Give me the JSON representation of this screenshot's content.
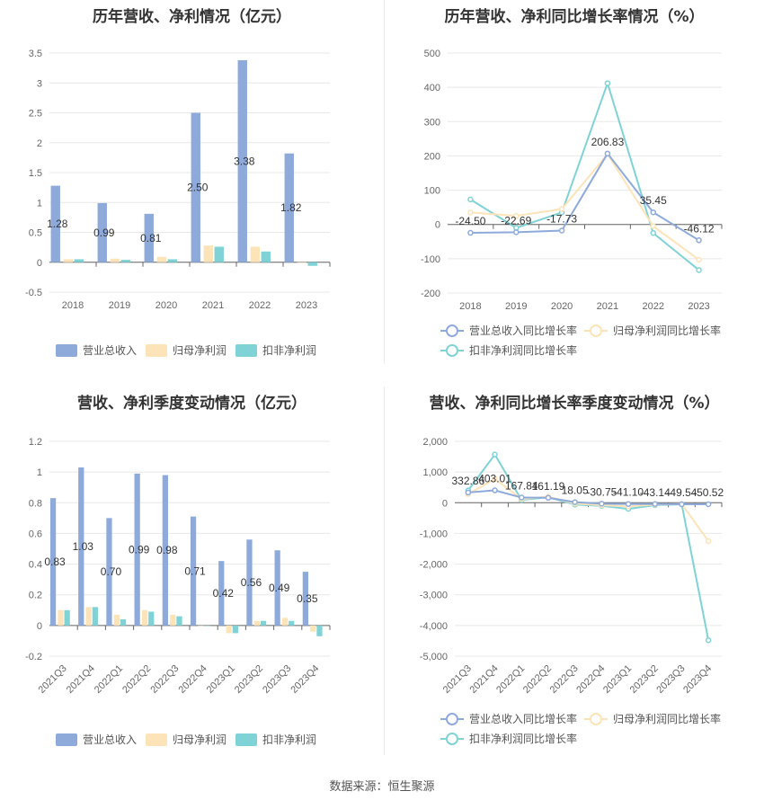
{
  "colors": {
    "revenue": "#8eaadb",
    "parent": "#fde3b8",
    "deducted": "#7fd3d6",
    "grid": "#e8e8e8",
    "axis": "#666666"
  },
  "source": "数据来源：恒生聚源",
  "chart_data": [
    {
      "type": "bar",
      "title": "历年营收、净利情况（亿元）",
      "categories": [
        "2018",
        "2019",
        "2020",
        "2021",
        "2022",
        "2023"
      ],
      "ylim": [
        -0.5,
        3.5
      ],
      "yticks": [
        -0.5,
        0,
        0.5,
        1,
        1.5,
        2,
        2.5,
        3,
        3.5
      ],
      "ytick_labels": [
        "-0.5",
        "0",
        "0.5",
        "1",
        "1.5",
        "2",
        "2.5",
        "3",
        "3.5"
      ],
      "series": [
        {
          "name": "营业总收入",
          "values": [
            1.28,
            0.99,
            0.81,
            2.5,
            3.38,
            1.82
          ],
          "labels": [
            "1.28",
            "0.99",
            "0.81",
            "2.50",
            "3.38",
            "1.82"
          ]
        },
        {
          "name": "归母净利润",
          "values": [
            0.05,
            0.06,
            0.09,
            0.28,
            0.26,
            -0.01
          ]
        },
        {
          "name": "扣非净利润",
          "values": [
            0.05,
            0.04,
            0.05,
            0.26,
            0.18,
            -0.06
          ]
        }
      ],
      "legend": "bottom"
    },
    {
      "type": "line",
      "title": "历年营收、净利同比增长率情况（%）",
      "categories": [
        "2018",
        "2019",
        "2020",
        "2021",
        "2022",
        "2023"
      ],
      "ylim": [
        -200,
        500
      ],
      "yticks": [
        -200,
        -100,
        0,
        100,
        200,
        300,
        400,
        500
      ],
      "ytick_labels": [
        "-200",
        "-100",
        "0",
        "100",
        "200",
        "300",
        "400",
        "500"
      ],
      "series": [
        {
          "name": "营业总收入同比增长率",
          "values": [
            -24.5,
            -22.69,
            -17.73,
            206.83,
            35.45,
            -46.12
          ],
          "labels": [
            "-24.50",
            "-22.69",
            "-17.73",
            "206.83",
            "35.45",
            "-46.12"
          ]
        },
        {
          "name": "归母净利润同比增长率",
          "values": [
            35,
            25,
            45,
            205,
            -5,
            -103
          ]
        },
        {
          "name": "扣非净利润同比增长率",
          "values": [
            73,
            -10,
            35,
            412,
            -25,
            -133
          ]
        }
      ],
      "legend": "bottom"
    },
    {
      "type": "bar",
      "title": "营收、净利季度变动情况（亿元）",
      "categories": [
        "2021Q3",
        "2021Q4",
        "2022Q1",
        "2022Q2",
        "2022Q3",
        "2022Q4",
        "2023Q1",
        "2023Q2",
        "2023Q3",
        "2023Q4"
      ],
      "ylim": [
        -0.2,
        1.2
      ],
      "yticks": [
        -0.2,
        0,
        0.2,
        0.4,
        0.6,
        0.8,
        1,
        1.2
      ],
      "ytick_labels": [
        "-0.2",
        "0",
        "0.2",
        "0.4",
        "0.6",
        "0.8",
        "1",
        "1.2"
      ],
      "series": [
        {
          "name": "营业总收入",
          "values": [
            0.83,
            1.03,
            0.7,
            0.99,
            0.98,
            0.71,
            0.42,
            0.56,
            0.49,
            0.35
          ],
          "labels": [
            "0.83",
            "1.03",
            "0.70",
            "0.99",
            "0.98",
            "0.71",
            "0.42",
            "0.56",
            "0.49",
            "0.35"
          ]
        },
        {
          "name": "归母净利润",
          "values": [
            0.1,
            0.12,
            0.07,
            0.1,
            0.07,
            0.0,
            -0.05,
            0.03,
            0.05,
            -0.04
          ]
        },
        {
          "name": "扣非净利润",
          "values": [
            0.1,
            0.12,
            0.04,
            0.09,
            0.06,
            0.0,
            -0.05,
            0.03,
            0.03,
            -0.07
          ]
        }
      ],
      "legend": "bottom"
    },
    {
      "type": "line",
      "title": "营收、净利同比增长率季度变动情况（%）",
      "categories": [
        "2021Q3",
        "2021Q4",
        "2022Q1",
        "2022Q2",
        "2022Q3",
        "2022Q4",
        "2023Q1",
        "2023Q2",
        "2023Q3",
        "2023Q4"
      ],
      "ylim": [
        -5000,
        2000
      ],
      "yticks": [
        -5000,
        -4000,
        -3000,
        -2000,
        -1000,
        0,
        1000,
        2000
      ],
      "ytick_labels": [
        "-5,000",
        "-4,000",
        "-3,000",
        "-2,000",
        "-1,000",
        "0",
        "1,000",
        "2,000"
      ],
      "series": [
        {
          "name": "营业总收入同比增长率",
          "values": [
            332.86,
            403.01,
            167.84,
            161.19,
            18.05,
            -30.75,
            -41.1,
            -43.14,
            -49.54,
            -50.52
          ],
          "labels": [
            "332.86",
            "403.01",
            "167.84",
            "161.19",
            "18.05",
            "-30.75",
            "-41.10",
            "-43.14",
            "-49.54",
            "-50.52"
          ]
        },
        {
          "name": "归母净利润同比增长率",
          "values": [
            280,
            780,
            120,
            200,
            -30,
            -80,
            -120,
            -60,
            -40,
            -1250
          ]
        },
        {
          "name": "扣非净利润同比增长率",
          "values": [
            400,
            1570,
            90,
            180,
            -60,
            -100,
            -200,
            -80,
            -50,
            -4480
          ]
        }
      ],
      "legend": "bottom"
    }
  ]
}
